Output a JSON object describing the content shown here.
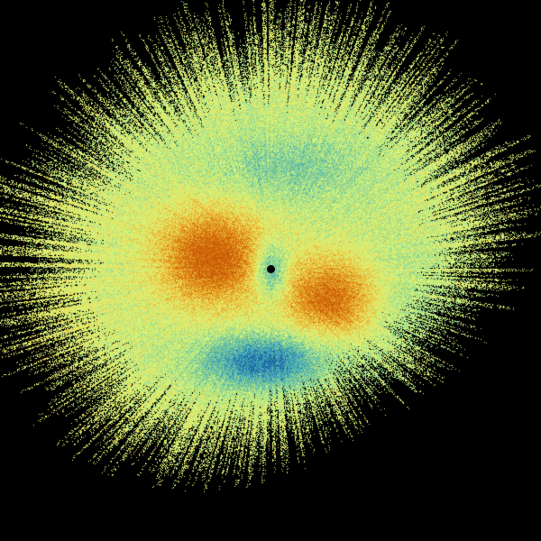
{
  "image": {
    "background_color": "#000000",
    "center_marker_color": "#000000",
    "palette": [
      "#1a5e9c",
      "#2f8fb8",
      "#5cb8a8",
      "#96d890",
      "#d2f27a",
      "#e8e060",
      "#e8b030",
      "#d87a10",
      "#c85a08"
    ]
  }
}
